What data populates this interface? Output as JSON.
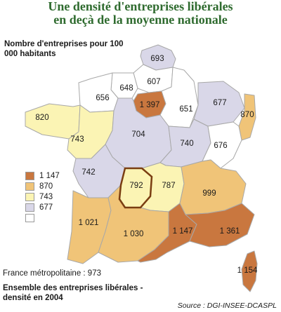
{
  "title_line1": "Une densité d'entreprises libérales",
  "title_line2": "en deçà de la moyenne nationale",
  "legend_heading": "Nombre d'entreprises pour 100 000 habitants",
  "legend": [
    {
      "label": "1 147",
      "color": "#c9773f"
    },
    {
      "label": "870",
      "color": "#f0c478"
    },
    {
      "label": "743",
      "color": "#fbf4b4"
    },
    {
      "label": "677",
      "color": "#d9d7e8"
    },
    {
      "label": "",
      "color": "#ffffff"
    }
  ],
  "regions": [
    {
      "name": "Nord-Pas-de-Calais",
      "value": "693"
    },
    {
      "name": "Picardie",
      "value": "607"
    },
    {
      "name": "Haute-Normandie",
      "value": "648"
    },
    {
      "name": "Basse-Normandie",
      "value": "656"
    },
    {
      "name": "Ile-de-France",
      "value": "1 397"
    },
    {
      "name": "Champagne-Ardenne",
      "value": "651"
    },
    {
      "name": "Lorraine",
      "value": "677"
    },
    {
      "name": "Alsace",
      "value": "870"
    },
    {
      "name": "Bretagne",
      "value": "820"
    },
    {
      "name": "Pays de la Loire",
      "value": "743"
    },
    {
      "name": "Centre",
      "value": "704"
    },
    {
      "name": "Bourgogne",
      "value": "740"
    },
    {
      "name": "Franche-Comte",
      "value": "676"
    },
    {
      "name": "Poitou-Charentes",
      "value": "742"
    },
    {
      "name": "Limousin",
      "value": "792"
    },
    {
      "name": "Auvergne",
      "value": "787"
    },
    {
      "name": "Rhone-Alpes",
      "value": "999"
    },
    {
      "name": "Aquitaine",
      "value": "1 021"
    },
    {
      "name": "Midi-Pyrenees",
      "value": "1 030"
    },
    {
      "name": "Languedoc-Roussillon",
      "value": "1 147"
    },
    {
      "name": "PACA",
      "value": "1 361"
    },
    {
      "name": "Corse",
      "value": "1 154"
    }
  ],
  "footer_avg": "France métropolitaine : 973",
  "footer_caption_line1": "Ensemble des entreprises libérales -",
  "footer_caption_line2": "densité en 2004",
  "source": "Source : DGI-INSEE-DCASPL"
}
